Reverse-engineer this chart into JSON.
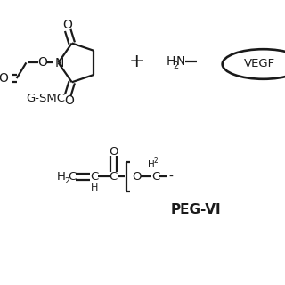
{
  "bg_color": "#ffffff",
  "line_color": "#1a1a1a",
  "fig_width": 3.2,
  "fig_height": 3.2,
  "dpi": 100,
  "xlim": [
    0,
    10
  ],
  "ylim": [
    0,
    10
  ]
}
